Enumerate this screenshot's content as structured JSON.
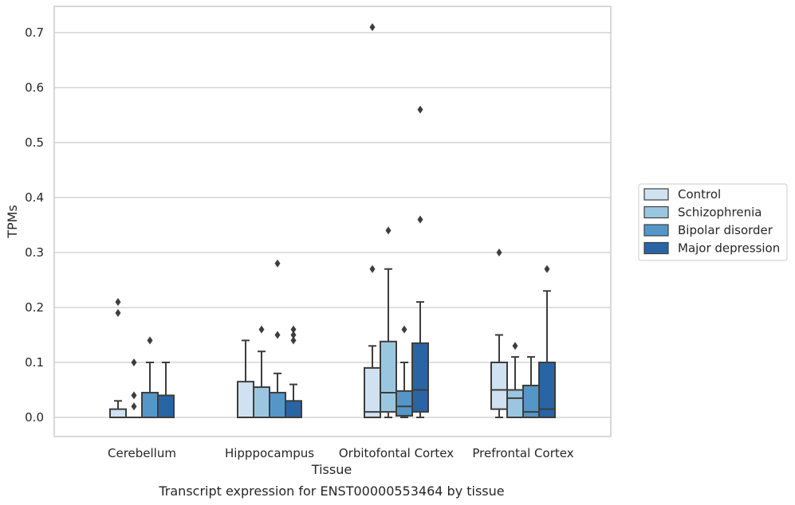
{
  "caption": "Transcript expression for ENST00000553464 by tissue",
  "chart_data": {
    "type": "box",
    "title": "",
    "xlabel": "Tissue",
    "ylabel": "TPMs",
    "ylim": [
      -0.035,
      0.745
    ],
    "yticks": [
      0.0,
      0.1,
      0.2,
      0.3,
      0.4,
      0.5,
      0.6,
      0.7
    ],
    "ytick_labels": [
      "0.0",
      "0.1",
      "0.2",
      "0.3",
      "0.4",
      "0.5",
      "0.6",
      "0.7"
    ],
    "grid": true,
    "legend_position": "right",
    "categories": [
      "Cerebellum",
      "Hipppocampus",
      "Orbitofontal Cortex",
      "Prefrontal Cortex"
    ],
    "series": [
      {
        "name": "Control",
        "color": "#d0e2f2",
        "boxes": [
          {
            "whisker_low": 0.0,
            "q1": 0.0,
            "median": 0.0,
            "q3": 0.015,
            "whisker_high": 0.03,
            "outliers": [
              0.19,
              0.21
            ]
          },
          {
            "whisker_low": 0.0,
            "q1": 0.0,
            "median": 0.0,
            "q3": 0.065,
            "whisker_high": 0.14,
            "outliers": []
          },
          {
            "whisker_low": 0.0,
            "q1": 0.0,
            "median": 0.01,
            "q3": 0.09,
            "whisker_high": 0.13,
            "outliers": [
              0.27,
              0.71
            ]
          },
          {
            "whisker_low": 0.0,
            "q1": 0.015,
            "median": 0.05,
            "q3": 0.1,
            "whisker_high": 0.15,
            "outliers": [
              0.3
            ]
          }
        ]
      },
      {
        "name": "Schizophrenia",
        "color": "#9ac7df",
        "boxes": [
          {
            "whisker_low": 0.0,
            "q1": 0.0,
            "median": 0.0,
            "q3": 0.0,
            "whisker_high": 0.0,
            "outliers": [
              0.02,
              0.04,
              0.1
            ]
          },
          {
            "whisker_low": 0.0,
            "q1": 0.0,
            "median": 0.0,
            "q3": 0.055,
            "whisker_high": 0.12,
            "outliers": [
              0.16
            ]
          },
          {
            "whisker_low": 0.0,
            "q1": 0.01,
            "median": 0.045,
            "q3": 0.138,
            "whisker_high": 0.27,
            "outliers": [
              0.34
            ]
          },
          {
            "whisker_low": 0.0,
            "q1": 0.0,
            "median": 0.035,
            "q3": 0.05,
            "whisker_high": 0.11,
            "outliers": [
              0.13
            ]
          }
        ]
      },
      {
        "name": "Bipolar disorder",
        "color": "#5596c8",
        "boxes": [
          {
            "whisker_low": 0.0,
            "q1": 0.0,
            "median": 0.0,
            "q3": 0.045,
            "whisker_high": 0.1,
            "outliers": [
              0.14
            ]
          },
          {
            "whisker_low": 0.0,
            "q1": 0.0,
            "median": 0.0,
            "q3": 0.045,
            "whisker_high": 0.08,
            "outliers": [
              0.15,
              0.28
            ]
          },
          {
            "whisker_low": 0.0,
            "q1": 0.003,
            "median": 0.02,
            "q3": 0.048,
            "whisker_high": 0.1,
            "outliers": [
              0.16
            ]
          },
          {
            "whisker_low": 0.0,
            "q1": 0.0,
            "median": 0.01,
            "q3": 0.058,
            "whisker_high": 0.11,
            "outliers": []
          }
        ]
      },
      {
        "name": "Major depression",
        "color": "#2964a5",
        "boxes": [
          {
            "whisker_low": 0.0,
            "q1": 0.0,
            "median": 0.0,
            "q3": 0.04,
            "whisker_high": 0.1,
            "outliers": []
          },
          {
            "whisker_low": 0.0,
            "q1": 0.0,
            "median": 0.0,
            "q3": 0.03,
            "whisker_high": 0.06,
            "outliers": [
              0.14,
              0.15,
              0.16
            ]
          },
          {
            "whisker_low": 0.0,
            "q1": 0.01,
            "median": 0.05,
            "q3": 0.135,
            "whisker_high": 0.21,
            "outliers": [
              0.36,
              0.56
            ]
          },
          {
            "whisker_low": 0.0,
            "q1": 0.0,
            "median": 0.015,
            "q3": 0.1,
            "whisker_high": 0.23,
            "outliers": [
              0.27
            ]
          }
        ]
      }
    ]
  }
}
